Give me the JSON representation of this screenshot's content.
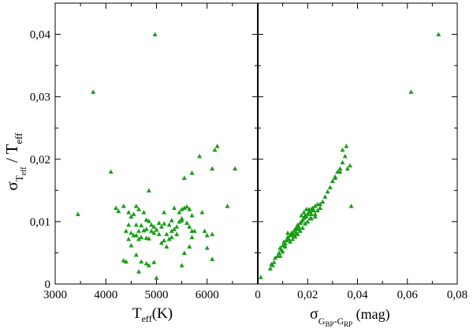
{
  "chart_data": [
    {
      "type": "scatter",
      "panel": "left",
      "ylabel": "σ_Teff / T_eff",
      "xlabel": "T_eff (K)",
      "xlim": [
        3000,
        7000
      ],
      "ylim": [
        0,
        0.045
      ],
      "x_ticks": [
        3000,
        4000,
        5000,
        6000
      ],
      "x_tick_labels": [
        "3000",
        "4000",
        "5000",
        "6000"
      ],
      "y_ticks": [
        0,
        0.01,
        0.02,
        0.03,
        0.04
      ],
      "y_tick_labels": [
        "0",
        "0,01",
        "0,02",
        "0,03",
        "0,04"
      ],
      "marker": "triangle",
      "color": "#169e16",
      "points": [
        [
          3450,
          0.0112
        ],
        [
          3750,
          0.0308
        ],
        [
          4100,
          0.018
        ],
        [
          4200,
          0.0122
        ],
        [
          4250,
          0.0117
        ],
        [
          4350,
          0.0038
        ],
        [
          4400,
          0.0036
        ],
        [
          4350,
          0.0125
        ],
        [
          4450,
          0.0115
        ],
        [
          4450,
          0.0095
        ],
        [
          4500,
          0.0108
        ],
        [
          4550,
          0.0112
        ],
        [
          4500,
          0.0082
        ],
        [
          4550,
          0.0078
        ],
        [
          4600,
          0.0078
        ],
        [
          4650,
          0.0072
        ],
        [
          4700,
          0.0075
        ],
        [
          4800,
          0.0074
        ],
        [
          4850,
          0.0073
        ],
        [
          4500,
          0.0062
        ],
        [
          4450,
          0.0072
        ],
        [
          4600,
          0.0125
        ],
        [
          4650,
          0.012
        ],
        [
          4750,
          0.0115
        ],
        [
          4800,
          0.0103
        ],
        [
          4850,
          0.0101
        ],
        [
          4600,
          0.0095
        ],
        [
          4700,
          0.0094
        ],
        [
          4650,
          0.0085
        ],
        [
          4750,
          0.0086
        ],
        [
          4800,
          0.0088
        ],
        [
          4900,
          0.0085
        ],
        [
          4950,
          0.0082
        ],
        [
          4700,
          0.0036
        ],
        [
          4800,
          0.0033
        ],
        [
          4600,
          0.0047
        ],
        [
          4650,
          0.002
        ],
        [
          4900,
          0.0095
        ],
        [
          4950,
          0.0092
        ],
        [
          5000,
          0.0087
        ],
        [
          4970,
          0.04
        ],
        [
          5000,
          0.001
        ],
        [
          4850,
          0.003
        ],
        [
          4950,
          0.0035
        ],
        [
          5050,
          0.008
        ],
        [
          5100,
          0.0066
        ],
        [
          5150,
          0.007
        ],
        [
          5200,
          0.008
        ],
        [
          5250,
          0.0095
        ],
        [
          5300,
          0.0102
        ],
        [
          5250,
          0.0072
        ],
        [
          5200,
          0.006
        ],
        [
          5100,
          0.0092
        ],
        [
          5150,
          0.0097
        ],
        [
          5300,
          0.0085
        ],
        [
          5350,
          0.0088
        ],
        [
          5400,
          0.008
        ],
        [
          5300,
          0.0075
        ],
        [
          5400,
          0.0092
        ],
        [
          5450,
          0.01
        ],
        [
          5500,
          0.0105
        ],
        [
          5450,
          0.0115
        ],
        [
          5550,
          0.0122
        ],
        [
          5600,
          0.0124
        ],
        [
          5650,
          0.012
        ],
        [
          5700,
          0.011
        ],
        [
          5500,
          0.012
        ],
        [
          5600,
          0.0098
        ],
        [
          5650,
          0.0092
        ],
        [
          5700,
          0.0085
        ],
        [
          5550,
          0.005
        ],
        [
          5500,
          0.003
        ],
        [
          5650,
          0.006
        ],
        [
          5700,
          0.0075
        ],
        [
          5750,
          0.0085
        ],
        [
          5550,
          0.017
        ],
        [
          5700,
          0.0178
        ],
        [
          5850,
          0.0205
        ],
        [
          5900,
          0.0115
        ],
        [
          5950,
          0.0085
        ],
        [
          6000,
          0.0078
        ],
        [
          6000,
          0.0058
        ],
        [
          6100,
          0.0185
        ],
        [
          6100,
          0.008
        ],
        [
          6150,
          0.0215
        ],
        [
          6200,
          0.0221
        ],
        [
          6100,
          0.004
        ],
        [
          6400,
          0.0125
        ],
        [
          6550,
          0.0185
        ],
        [
          4850,
          0.015
        ],
        [
          5500,
          0.0102
        ],
        [
          4400,
          0.0085
        ],
        [
          5050,
          0.0098
        ],
        [
          5150,
          0.0115
        ],
        [
          5350,
          0.0122
        ]
      ]
    },
    {
      "type": "scatter",
      "panel": "right",
      "xlabel": "σ_GBP-GRP (mag)",
      "xlim": [
        0,
        0.08
      ],
      "ylim": [
        0,
        0.045
      ],
      "x_ticks": [
        0,
        0.02,
        0.04,
        0.06,
        0.08
      ],
      "x_tick_labels": [
        "0",
        "0,02",
        "0,04",
        "0,06",
        "0,08"
      ],
      "marker": "triangle",
      "color": "#169e16",
      "points": [
        [
          0.0012,
          0.0011
        ],
        [
          0.005,
          0.0025
        ],
        [
          0.0055,
          0.0032
        ],
        [
          0.0065,
          0.0035
        ],
        [
          0.007,
          0.0042
        ],
        [
          0.008,
          0.0045
        ],
        [
          0.0085,
          0.005
        ],
        [
          0.009,
          0.0058
        ],
        [
          0.0095,
          0.0055
        ],
        [
          0.01,
          0.0062
        ],
        [
          0.0105,
          0.0068
        ],
        [
          0.011,
          0.0065
        ],
        [
          0.0115,
          0.007
        ],
        [
          0.012,
          0.0075
        ],
        [
          0.0125,
          0.0072
        ],
        [
          0.013,
          0.0078
        ],
        [
          0.0135,
          0.0082
        ],
        [
          0.014,
          0.008
        ],
        [
          0.0145,
          0.0085
        ],
        [
          0.015,
          0.0088
        ],
        [
          0.0155,
          0.009
        ],
        [
          0.016,
          0.0095
        ],
        [
          0.0165,
          0.0092
        ],
        [
          0.017,
          0.0098
        ],
        [
          0.0175,
          0.01
        ],
        [
          0.018,
          0.0103
        ],
        [
          0.0185,
          0.0106
        ],
        [
          0.019,
          0.011
        ],
        [
          0.0195,
          0.0108
        ],
        [
          0.02,
          0.0112
        ],
        [
          0.0205,
          0.0115
        ],
        [
          0.021,
          0.0117
        ],
        [
          0.0215,
          0.012
        ],
        [
          0.022,
          0.0122
        ],
        [
          0.0225,
          0.0118
        ],
        [
          0.023,
          0.0125
        ],
        [
          0.024,
          0.0128
        ],
        [
          0.025,
          0.0122
        ],
        [
          0.016,
          0.008
        ],
        [
          0.017,
          0.0085
        ],
        [
          0.018,
          0.009
        ],
        [
          0.015,
          0.0076
        ],
        [
          0.014,
          0.0072
        ],
        [
          0.013,
          0.0068
        ],
        [
          0.02,
          0.01
        ],
        [
          0.021,
          0.0105
        ],
        [
          0.019,
          0.0097
        ],
        [
          0.0175,
          0.011
        ],
        [
          0.0185,
          0.0115
        ],
        [
          0.0195,
          0.012
        ],
        [
          0.0215,
          0.0105
        ],
        [
          0.023,
          0.0112
        ],
        [
          0.024,
          0.0118
        ],
        [
          0.025,
          0.0128
        ],
        [
          0.026,
          0.0132
        ],
        [
          0.027,
          0.014
        ],
        [
          0.028,
          0.0148
        ],
        [
          0.029,
          0.0155
        ],
        [
          0.03,
          0.0165
        ],
        [
          0.031,
          0.017
        ],
        [
          0.032,
          0.018
        ],
        [
          0.033,
          0.0185
        ],
        [
          0.034,
          0.0195
        ],
        [
          0.035,
          0.0205
        ],
        [
          0.034,
          0.0215
        ],
        [
          0.0355,
          0.0221
        ],
        [
          0.036,
          0.0185
        ],
        [
          0.037,
          0.019
        ],
        [
          0.0375,
          0.0125
        ],
        [
          0.033,
          0.018
        ],
        [
          0.031,
          0.0172
        ],
        [
          0.023,
          0.0108
        ],
        [
          0.012,
          0.0082
        ],
        [
          0.011,
          0.006
        ],
        [
          0.01,
          0.0052
        ],
        [
          0.009,
          0.0045
        ],
        [
          0.006,
          0.003
        ],
        [
          0.0165,
          0.0088
        ],
        [
          0.0155,
          0.0082
        ],
        [
          0.0145,
          0.0078
        ],
        [
          0.0615,
          0.0308
        ],
        [
          0.0725,
          0.04
        ],
        [
          0.0205,
          0.012
        ],
        [
          0.0215,
          0.0112
        ]
      ]
    }
  ]
}
